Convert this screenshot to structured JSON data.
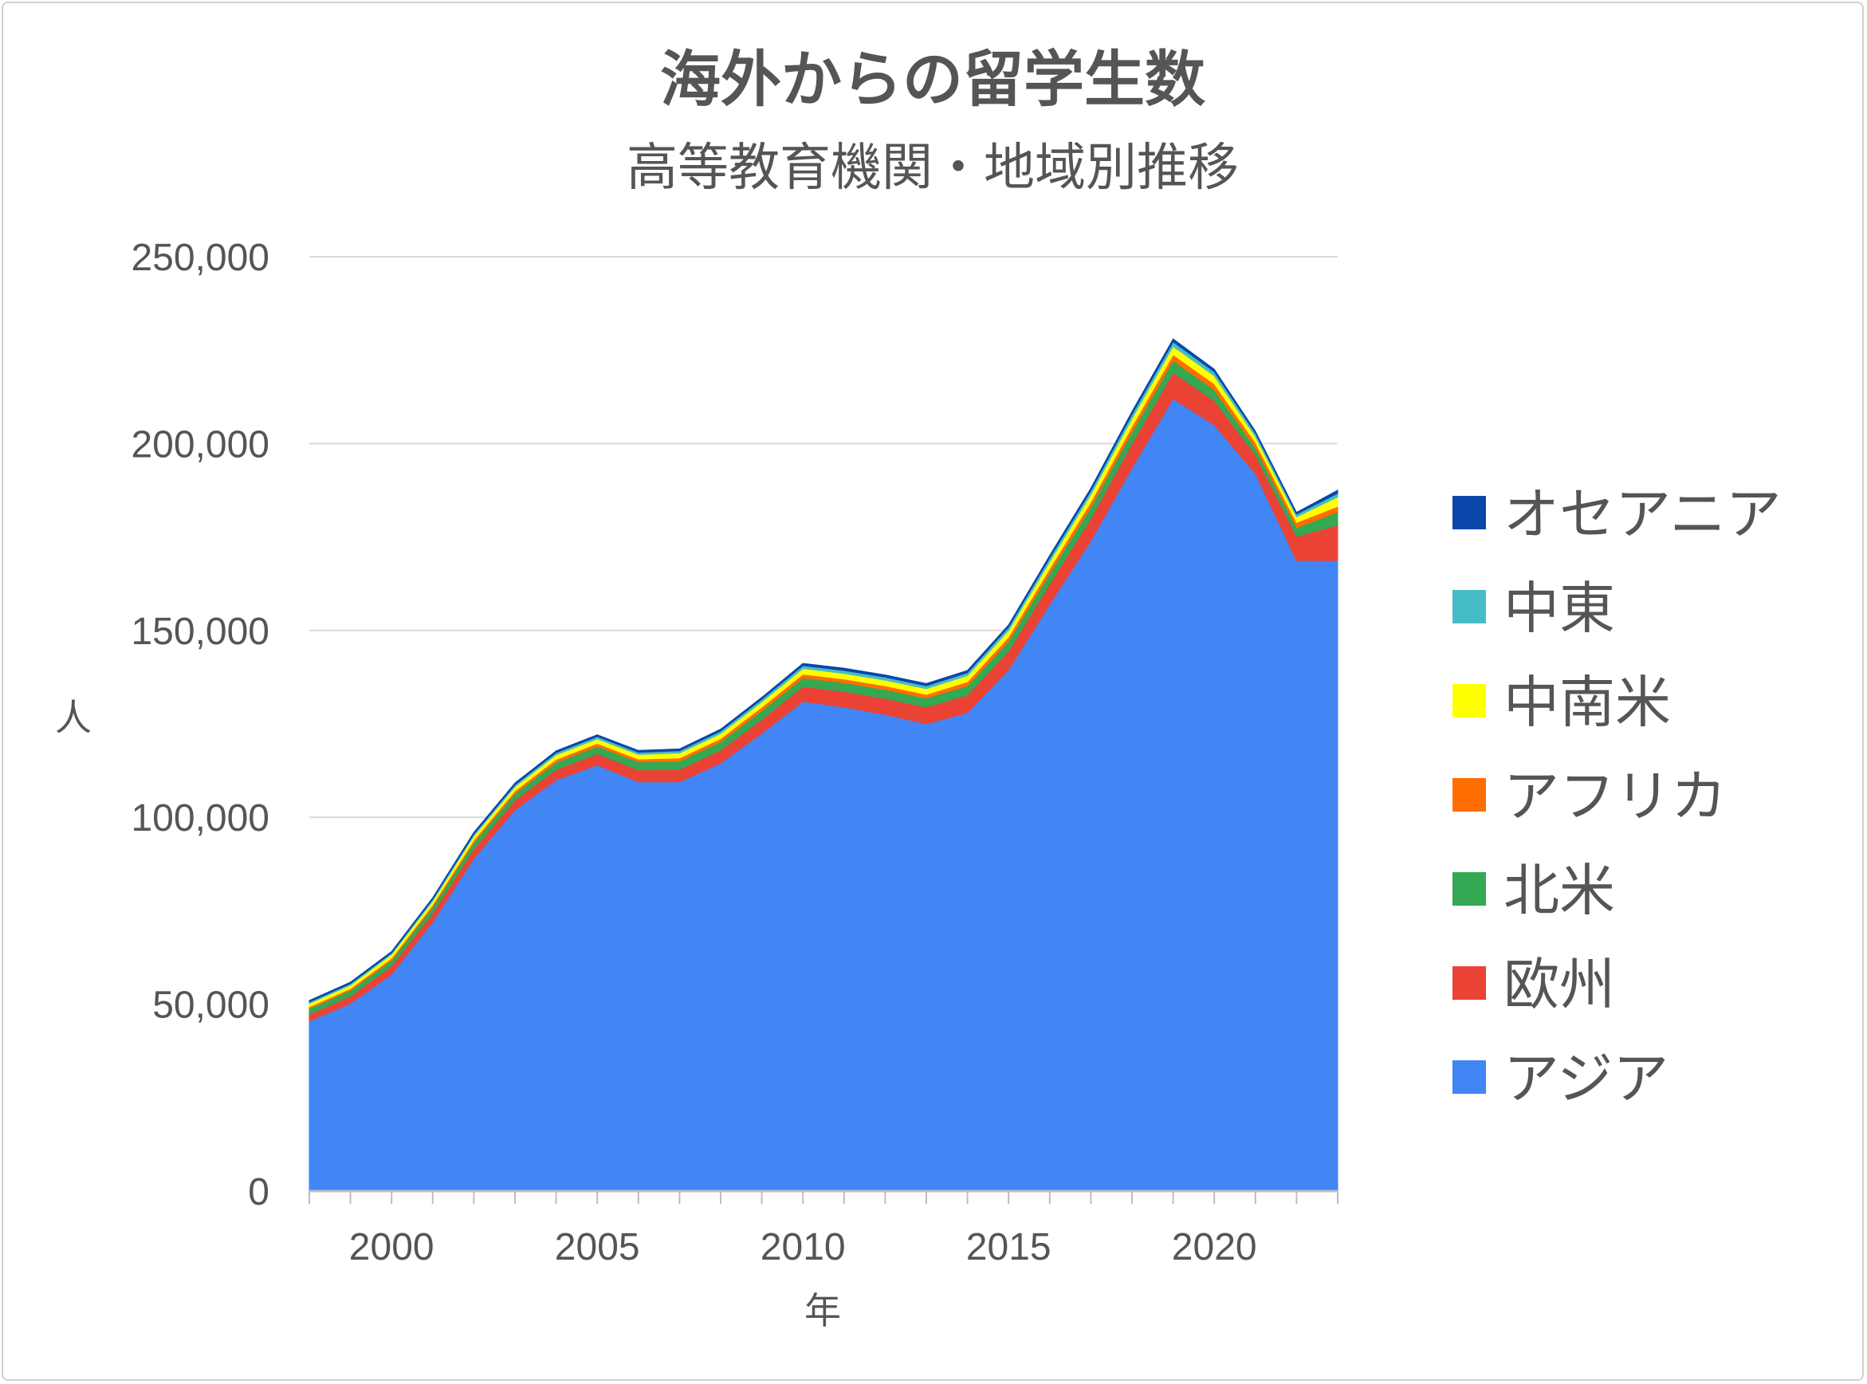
{
  "chart_data": {
    "type": "area",
    "stacked": true,
    "title": "海外からの留学生数",
    "subtitle": "高等教育機関・地域別推移",
    "xlabel": "年",
    "ylabel": "人",
    "ylim": [
      0,
      250000
    ],
    "xlim": [
      1998,
      2023
    ],
    "yticks": [
      "0",
      "50,000",
      "100,000",
      "150,000",
      "200,000",
      "250,000"
    ],
    "xticks": [
      "2000",
      "2005",
      "2010",
      "2015",
      "2020"
    ],
    "grid": true,
    "legend_position": "right",
    "x": [
      1998,
      1999,
      2000,
      2001,
      2002,
      2003,
      2004,
      2005,
      2006,
      2007,
      2008,
      2009,
      2010,
      2011,
      2012,
      2013,
      2014,
      2015,
      2016,
      2017,
      2018,
      2019,
      2020,
      2021,
      2022,
      2023
    ],
    "series": [
      {
        "name": "アジア",
        "color": "#4285f4",
        "values": [
          45500,
          50200,
          58000,
          72000,
          89000,
          102000,
          110000,
          114000,
          109500,
          109500,
          114500,
          122500,
          131000,
          129500,
          127500,
          125000,
          128000,
          139500,
          157000,
          174000,
          193500,
          212000,
          205000,
          192000,
          168700,
          168700
        ]
      },
      {
        "name": "欧州",
        "color": "#ea4335",
        "values": [
          1800,
          2000,
          2200,
          2400,
          2500,
          2600,
          2800,
          3000,
          3200,
          3300,
          3500,
          3700,
          4000,
          4200,
          4300,
          4500,
          4700,
          5000,
          5500,
          6000,
          6500,
          7000,
          6500,
          5000,
          6500,
          9500
        ]
      },
      {
        "name": "北米",
        "color": "#34a853",
        "values": [
          1500,
          1500,
          1500,
          1600,
          1700,
          1800,
          1900,
          2000,
          2100,
          2200,
          2200,
          2300,
          2300,
          2300,
          2400,
          2400,
          2500,
          2600,
          2800,
          3000,
          3100,
          3200,
          2900,
          1800,
          2300,
          3500
        ]
      },
      {
        "name": "アフリカ",
        "color": "#ff6d01",
        "values": [
          500,
          500,
          600,
          600,
          700,
          700,
          800,
          800,
          800,
          900,
          900,
          1000,
          1000,
          1000,
          1000,
          1000,
          1100,
          1200,
          1300,
          1400,
          1500,
          1600,
          1600,
          1500,
          1400,
          1500
        ]
      },
      {
        "name": "中南米",
        "color": "#ffff00",
        "values": [
          900,
          900,
          1000,
          1000,
          1100,
          1100,
          1200,
          1200,
          1200,
          1300,
          1300,
          1400,
          1500,
          1500,
          1500,
          1500,
          1600,
          1700,
          1800,
          2000,
          2100,
          2200,
          2100,
          1600,
          1500,
          2500
        ]
      },
      {
        "name": "中東",
        "color": "#46bdc6",
        "values": [
          400,
          400,
          400,
          500,
          500,
          500,
          600,
          600,
          600,
          600,
          700,
          700,
          800,
          800,
          800,
          800,
          800,
          900,
          1000,
          1000,
          1100,
          1200,
          1100,
          900,
          700,
          1000
        ]
      },
      {
        "name": "オセアニア",
        "color": "#0b47ab",
        "values": [
          400,
          400,
          400,
          400,
          500,
          500,
          500,
          500,
          500,
          500,
          500,
          500,
          600,
          600,
          600,
          600,
          600,
          600,
          700,
          700,
          800,
          800,
          700,
          500,
          500,
          800
        ]
      }
    ]
  }
}
